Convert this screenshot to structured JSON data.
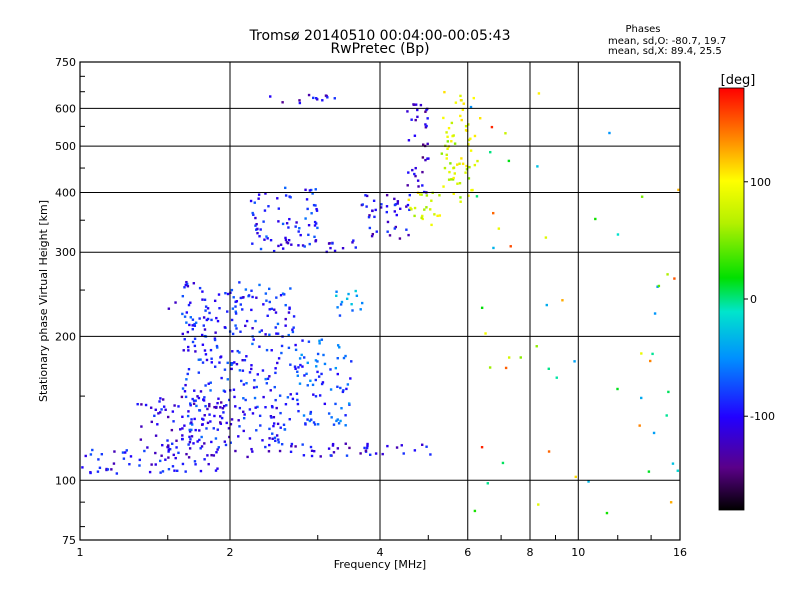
{
  "header": {
    "title_line1": "Tromsø 20140510 00:04:00-00:05:43",
    "title_line2": "RwPretec (Bp)",
    "stats_heading": "Phases",
    "stats_o": "mean, sd,O: -80.7, 19.7",
    "stats_x": "mean, sd,X: 89.4, 25.5"
  },
  "colorbar": {
    "label": "[deg]",
    "ticks": [
      {
        "label": "100",
        "value": 100
      },
      {
        "label": "0",
        "value": 0
      },
      {
        "label": "-100",
        "value": -100
      }
    ],
    "range": [
      -180,
      180
    ]
  },
  "chart_data": {
    "type": "scatter",
    "title": "Tromsø 20140510 00:04:00-00:05:43",
    "subtitle": "RwPretec (Bp)",
    "xlabel": "Frequency [MHz]",
    "ylabel": "Stationary phase Virtual Height [km]",
    "xscale": "log",
    "yscale": "log",
    "xlim": [
      1,
      16
    ],
    "ylim": [
      75,
      750
    ],
    "xticks": [
      1,
      2,
      4,
      6,
      8,
      10,
      16
    ],
    "xtick_labels": [
      "1",
      "2",
      "4",
      "6",
      "8",
      "10",
      "16"
    ],
    "yticks": [
      75,
      100,
      200,
      300,
      400,
      500,
      600,
      750
    ],
    "ytick_labels": [
      "75",
      "100",
      "200",
      "300",
      "400",
      "500",
      "600",
      "750"
    ],
    "grid": true,
    "color_variable": "phase [deg]",
    "color_range": [
      -180,
      180
    ],
    "clusters": [
      {
        "x_range": [
          1.0,
          1.9
        ],
        "y_range": [
          103,
          118
        ],
        "phase": -100
      },
      {
        "x_range": [
          1.3,
          2.0
        ],
        "y_range": [
          115,
          150
        ],
        "phase": -105
      },
      {
        "x_range": [
          2.0,
          3.6
        ],
        "y_range": [
          112,
          120
        ],
        "phase": -105
      },
      {
        "x_range": [
          3.4,
          5.2
        ],
        "y_range": [
          113,
          120
        ],
        "phase": -110
      },
      {
        "x_range": [
          1.6,
          2.7
        ],
        "y_range": [
          120,
          260
        ],
        "phase": -90
      },
      {
        "x_range": [
          2.7,
          3.5
        ],
        "y_range": [
          130,
          200
        ],
        "phase": -75
      },
      {
        "x_range": [
          2.2,
          3.0
        ],
        "y_range": [
          310,
          410
        ],
        "phase": -90
      },
      {
        "x_range": [
          2.3,
          3.6
        ],
        "y_range": [
          300,
          320
        ],
        "phase": -100
      },
      {
        "x_range": [
          3.6,
          4.6
        ],
        "y_range": [
          320,
          400
        ],
        "phase": -110
      },
      {
        "x_range": [
          4.5,
          5.0
        ],
        "y_range": [
          400,
          640
        ],
        "phase": -120
      },
      {
        "x_range": [
          4.5,
          5.4
        ],
        "y_range": [
          340,
          400
        ],
        "phase": 85
      },
      {
        "x_range": [
          5.3,
          6.2
        ],
        "y_range": [
          380,
          650
        ],
        "phase": 80
      },
      {
        "x_range": [
          2.4,
          3.3
        ],
        "y_range": [
          610,
          645
        ],
        "phase": -110
      },
      {
        "x_range": [
          3.2,
          3.7
        ],
        "y_range": [
          220,
          250
        ],
        "phase": -50
      },
      {
        "x_range": [
          1.5,
          1.6
        ],
        "y_range": [
          228,
          236
        ],
        "phase": -95
      },
      {
        "x_range": [
          6.0,
          16.0
        ],
        "y_range": [
          85,
          650
        ],
        "phase": 60
      }
    ]
  }
}
